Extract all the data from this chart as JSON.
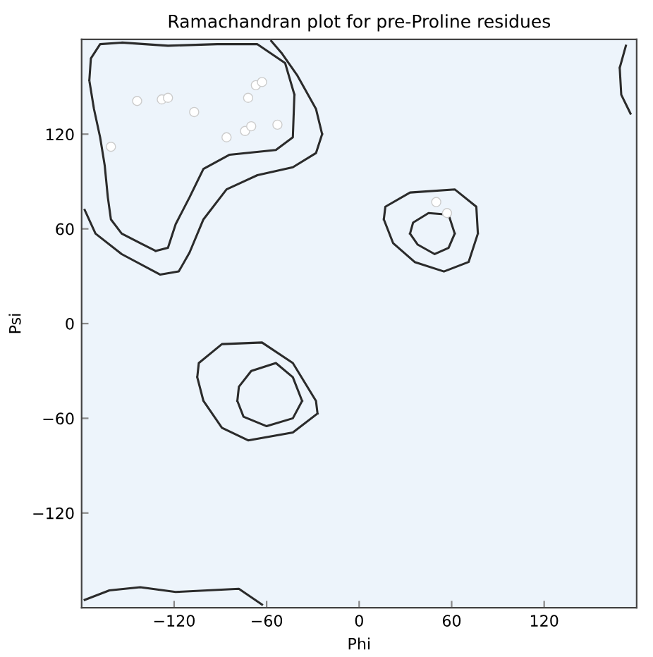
{
  "chart_data": {
    "type": "scatter",
    "title": "Ramachandran plot for pre-Proline residues",
    "xlabel": "Phi",
    "ylabel": "Psi",
    "xlim": [
      -180,
      180
    ],
    "ylim": [
      -180,
      180
    ],
    "xticks": [
      -120,
      -60,
      0,
      60,
      120
    ],
    "yticks": [
      -120,
      -60,
      0,
      60,
      120
    ],
    "grid": false,
    "series": [
      {
        "color": "#ffffff",
        "marker": "circle",
        "x": [
          -161,
          -144,
          -128,
          -124,
          -107,
          -86,
          -74,
          -70,
          -72,
          -67,
          -63,
          -53,
          50,
          57
        ],
        "values": [
          112,
          141,
          142,
          143,
          134,
          118,
          122,
          125,
          143,
          151,
          153,
          126,
          77,
          70
        ]
      },
      {
        "type": "line",
        "color": "#2b2b2b",
        "marker": "none",
        "line_style": "solid",
        "x": [
          -178,
          -171,
          -154,
          -129,
          -117,
          -110,
          -101,
          -86,
          -66,
          -43,
          -28,
          -24,
          null,
          -24,
          -28,
          -40,
          -50,
          -57
        ],
        "values": [
          72,
          57,
          44,
          31,
          33,
          45,
          66,
          85,
          94,
          99,
          108,
          120,
          null,
          120,
          136,
          157,
          171,
          179
        ]
      },
      {
        "type": "line",
        "color": "#2b2b2b",
        "marker": "none",
        "line_style": "solid",
        "x": [
          -175,
          -174,
          -168,
          -154,
          -124,
          -92,
          -66,
          -48,
          -42,
          null,
          -42,
          -43,
          -54,
          -84,
          -101,
          -110,
          -119,
          -124,
          -132,
          null,
          -132,
          -142,
          -154,
          -161,
          -163,
          -165,
          -168,
          -172,
          -175
        ],
        "values": [
          154,
          168,
          177,
          178,
          176,
          177,
          177,
          165,
          145,
          null,
          145,
          118,
          110,
          107,
          98,
          80,
          63,
          48,
          46,
          null,
          46,
          51,
          57,
          66,
          80,
          100,
          118,
          136,
          154
        ]
      },
      {
        "type": "line",
        "color": "#2b2b2b",
        "marker": "none",
        "line_style": "solid",
        "x": [
          16,
          17,
          33,
          62,
          76,
          77,
          null,
          77,
          71,
          55,
          36,
          22,
          16
        ],
        "values": [
          66,
          74,
          83,
          85,
          74,
          57,
          null,
          57,
          39,
          33,
          39,
          51,
          66
        ]
      },
      {
        "type": "line",
        "color": "#2b2b2b",
        "marker": "none",
        "line_style": "solid",
        "x": [
          33,
          35,
          45,
          58,
          62,
          null,
          62,
          58,
          49,
          38,
          33
        ],
        "values": [
          57,
          64,
          70,
          69,
          57,
          null,
          57,
          48,
          44,
          50,
          57
        ]
      },
      {
        "type": "line",
        "color": "#2b2b2b",
        "marker": "none",
        "line_style": "solid",
        "x": [
          -105,
          -104,
          -89,
          -63,
          -43,
          -28,
          -27,
          null,
          -27,
          -43,
          -72,
          -89,
          -101,
          -105
        ],
        "values": [
          -34,
          -25,
          -13,
          -12,
          -25,
          -49,
          -57,
          null,
          -57,
          -69,
          -74,
          -66,
          -49,
          -34
        ]
      },
      {
        "type": "line",
        "color": "#2b2b2b",
        "marker": "none",
        "line_style": "solid",
        "x": [
          -79,
          -78,
          -70,
          -54,
          -43,
          -37,
          null,
          -37,
          -43,
          -60,
          -75,
          -79
        ],
        "values": [
          -49,
          -40,
          -30,
          -25,
          -34,
          -49,
          null,
          -49,
          -60,
          -65,
          -59,
          -49
        ]
      },
      {
        "type": "line",
        "color": "#2b2b2b",
        "marker": "none",
        "line_style": "solid",
        "x": [
          -178,
          -162,
          -142,
          -119,
          -78,
          -63
        ],
        "values": [
          -175,
          -169,
          -167,
          -170,
          -168,
          -178
        ]
      },
      {
        "type": "line",
        "color": "#2b2b2b",
        "marker": "none",
        "line_style": "solid",
        "x": [
          173,
          169,
          null,
          169,
          170,
          176
        ],
        "values": [
          176,
          162,
          null,
          162,
          145,
          133
        ]
      }
    ]
  }
}
